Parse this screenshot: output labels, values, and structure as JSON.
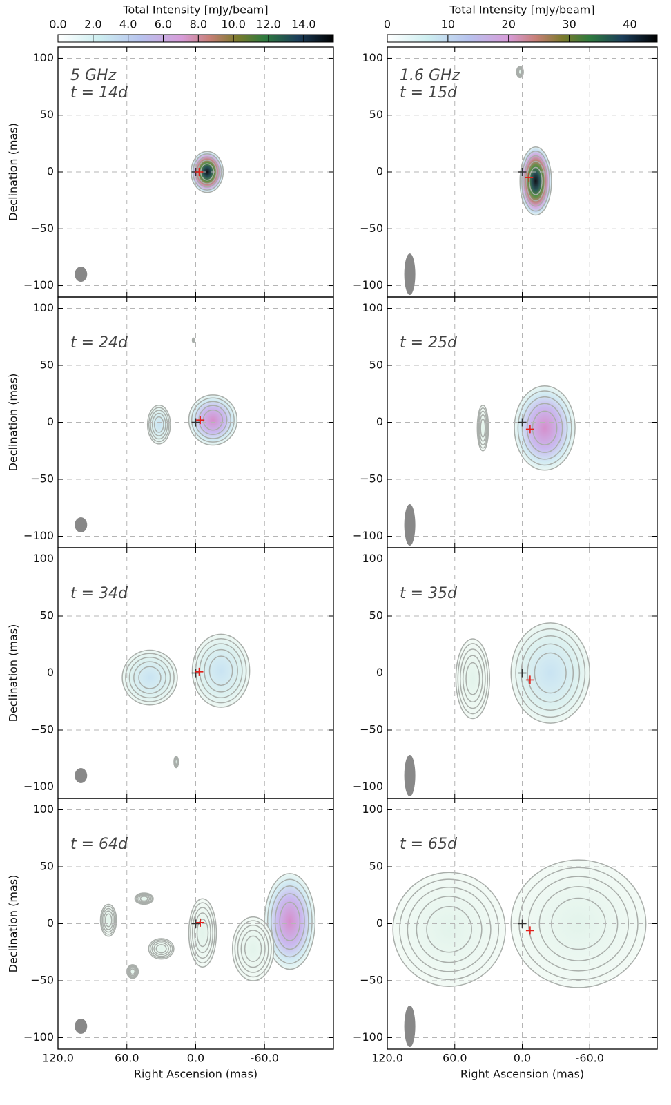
{
  "chart_data": [
    {
      "type": "contour",
      "annotation": [
        "5 GHz",
        "t = 14d"
      ],
      "ylabel": "Declination (mas)",
      "xlim": [
        120,
        -120
      ],
      "ylim": [
        -110,
        110
      ],
      "xticks": [
        {
          "value": 120,
          "label": "120.0"
        },
        {
          "value": 60,
          "label": "60.0"
        },
        {
          "value": 0,
          "label": "0.0"
        },
        {
          "value": -60,
          "label": "-60.0"
        }
      ],
      "yticks": [
        {
          "value": 100,
          "label": "100"
        },
        {
          "value": 50,
          "label": "50"
        },
        {
          "value": 0,
          "label": "0"
        },
        {
          "value": -50,
          "label": "−50"
        },
        {
          "value": -100,
          "label": "−100"
        }
      ],
      "grid": true,
      "colorbar": {
        "label": "Total Intensity [mJy/beam]",
        "lim": [
          0,
          15.7
        ],
        "ticks": [
          {
            "value": 0,
            "label": "0.0"
          },
          {
            "value": 2,
            "label": "2.0"
          },
          {
            "value": 4,
            "label": "4.0"
          },
          {
            "value": 6,
            "label": "6.0"
          },
          {
            "value": 8,
            "label": "8.0"
          },
          {
            "value": 10,
            "label": "10.0"
          },
          {
            "value": 12,
            "label": "12.0"
          },
          {
            "value": 14,
            "label": "14.0"
          }
        ]
      }
    },
    {
      "type": "contour",
      "annotation": [
        "1.6 GHz",
        "t = 15d"
      ],
      "xlim": [
        120,
        -120
      ],
      "ylim": [
        -110,
        110
      ],
      "xticks": [
        {
          "value": 120,
          "label": "120.0"
        },
        {
          "value": 60,
          "label": "60.0"
        },
        {
          "value": 0,
          "label": "0.0"
        },
        {
          "value": -60,
          "label": "-60.0"
        }
      ],
      "yticks": [
        {
          "value": 100,
          "label": "100"
        },
        {
          "value": 50,
          "label": "50"
        },
        {
          "value": 0,
          "label": "0"
        },
        {
          "value": -50,
          "label": "−50"
        },
        {
          "value": -100,
          "label": "−100"
        }
      ],
      "grid": true,
      "colorbar": {
        "label": "Total Intensity [mJy/beam]",
        "lim": [
          0,
          44.5
        ],
        "ticks": [
          0,
          10,
          20,
          30,
          40
        ]
      }
    },
    {
      "type": "contour",
      "annotation": [
        "t = 24d"
      ],
      "ylabel": "Declination (mas)",
      "xlim": [
        120,
        -120
      ],
      "ylim": [
        -110,
        110
      ],
      "xticks": [
        {
          "value": 120,
          "label": "120.0"
        },
        {
          "value": 60,
          "label": "60.0"
        },
        {
          "value": 0,
          "label": "0.0"
        },
        {
          "value": -60,
          "label": "-60.0"
        }
      ],
      "yticks": [
        {
          "value": 100,
          "label": "100"
        },
        {
          "value": 50,
          "label": "50"
        },
        {
          "value": 0,
          "label": "0"
        },
        {
          "value": -50,
          "label": "−50"
        },
        {
          "value": -100,
          "label": "−100"
        }
      ],
      "grid": true
    },
    {
      "type": "contour",
      "annotation": [
        "t = 25d"
      ],
      "xlim": [
        120,
        -120
      ],
      "ylim": [
        -110,
        110
      ],
      "xticks": [
        {
          "value": 120,
          "label": "120.0"
        },
        {
          "value": 60,
          "label": "60.0"
        },
        {
          "value": 0,
          "label": "0.0"
        },
        {
          "value": -60,
          "label": "-60.0"
        }
      ],
      "yticks": [
        {
          "value": 100,
          "label": "100"
        },
        {
          "value": 50,
          "label": "50"
        },
        {
          "value": 0,
          "label": "0"
        },
        {
          "value": -50,
          "label": "−50"
        },
        {
          "value": -100,
          "label": "−100"
        }
      ],
      "grid": true
    },
    {
      "type": "contour",
      "annotation": [
        "t = 34d"
      ],
      "ylabel": "Declination (mas)",
      "xlim": [
        120,
        -120
      ],
      "ylim": [
        -110,
        110
      ],
      "xticks": [
        {
          "value": 120,
          "label": "120.0"
        },
        {
          "value": 60,
          "label": "60.0"
        },
        {
          "value": 0,
          "label": "0.0"
        },
        {
          "value": -60,
          "label": "-60.0"
        }
      ],
      "yticks": [
        {
          "value": 100,
          "label": "100"
        },
        {
          "value": 50,
          "label": "50"
        },
        {
          "value": 0,
          "label": "0"
        },
        {
          "value": -50,
          "label": "−50"
        },
        {
          "value": -100,
          "label": "−100"
        }
      ],
      "grid": true
    },
    {
      "type": "contour",
      "annotation": [
        "t = 35d"
      ],
      "xlim": [
        120,
        -120
      ],
      "ylim": [
        -110,
        110
      ],
      "xticks": [
        {
          "value": 120,
          "label": "120.0"
        },
        {
          "value": 60,
          "label": "60.0"
        },
        {
          "value": 0,
          "label": "0.0"
        },
        {
          "value": -60,
          "label": "-60.0"
        }
      ],
      "yticks": [
        {
          "value": 100,
          "label": "100"
        },
        {
          "value": 50,
          "label": "50"
        },
        {
          "value": 0,
          "label": "0"
        },
        {
          "value": -50,
          "label": "−50"
        },
        {
          "value": -100,
          "label": "−100"
        }
      ],
      "grid": true
    },
    {
      "type": "contour",
      "annotation": [
        "t = 64d"
      ],
      "ylabel": "Declination (mas)",
      "xlabel": "Right Ascension (mas)",
      "xlim": [
        120,
        -120
      ],
      "ylim": [
        -110,
        110
      ],
      "xticks": [
        {
          "value": 120,
          "label": "120.0"
        },
        {
          "value": 60,
          "label": "60.0"
        },
        {
          "value": 0,
          "label": "0.0"
        },
        {
          "value": -60,
          "label": "-60.0"
        }
      ],
      "yticks": [
        {
          "value": 100,
          "label": "100"
        },
        {
          "value": 50,
          "label": "50"
        },
        {
          "value": 0,
          "label": "0"
        },
        {
          "value": -50,
          "label": "−50"
        },
        {
          "value": -100,
          "label": "−100"
        }
      ],
      "grid": true
    },
    {
      "type": "contour",
      "annotation": [
        "t = 65d"
      ],
      "xlabel": "Right Ascension (mas)",
      "xlim": [
        120,
        -120
      ],
      "ylim": [
        -110,
        110
      ],
      "xticks": [
        {
          "value": 120,
          "label": "120.0"
        },
        {
          "value": 60,
          "label": "60.0"
        },
        {
          "value": 0,
          "label": "0.0"
        },
        {
          "value": -60,
          "label": "-60.0"
        }
      ],
      "yticks": [
        {
          "value": 100,
          "label": "100"
        },
        {
          "value": 50,
          "label": "50"
        },
        {
          "value": 0,
          "label": "0"
        },
        {
          "value": -50,
          "label": "−50"
        },
        {
          "value": -100,
          "label": "−100"
        }
      ],
      "grid": true
    }
  ]
}
